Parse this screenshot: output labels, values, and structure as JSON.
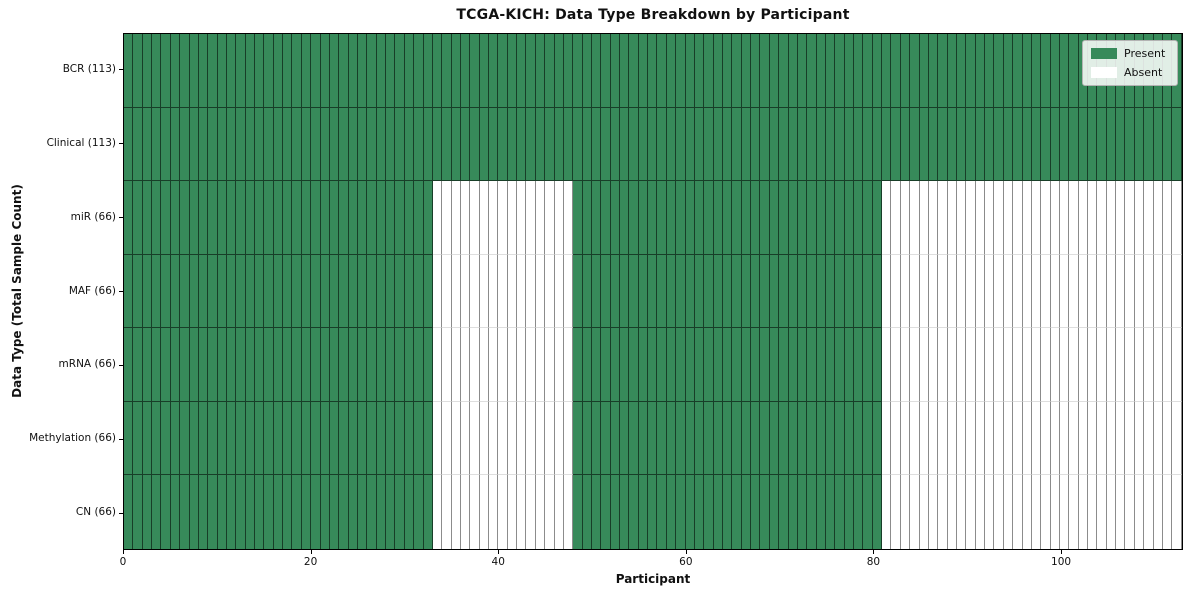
{
  "chart_data": {
    "type": "heatmap",
    "title": "TCGA-KICH: Data Type Breakdown by Participant",
    "xlabel": "Participant",
    "ylabel": "Data Type (Total Sample Count)",
    "x_range": [
      0,
      113
    ],
    "n_participants": 113,
    "x_ticks": [
      0,
      20,
      40,
      60,
      80,
      100
    ],
    "grid": true,
    "colors": {
      "present": "#378a5a",
      "absent": "#ffffff"
    },
    "legend": {
      "position": "upper right",
      "entries": [
        {
          "label": "Present",
          "color": "#378a5a"
        },
        {
          "label": "Absent",
          "color": "#ffffff"
        }
      ]
    },
    "rows": [
      {
        "label": "BCR (113)",
        "total_samples": 113,
        "present_ranges": [
          [
            0,
            113
          ]
        ],
        "absent_ranges": []
      },
      {
        "label": "Clinical (113)",
        "total_samples": 113,
        "present_ranges": [
          [
            0,
            113
          ]
        ],
        "absent_ranges": []
      },
      {
        "label": "miR (66)",
        "total_samples": 66,
        "present_ranges": [
          [
            0,
            33
          ],
          [
            48,
            81
          ]
        ],
        "absent_ranges": [
          [
            33,
            48
          ],
          [
            81,
            113
          ]
        ]
      },
      {
        "label": "MAF (66)",
        "total_samples": 66,
        "present_ranges": [
          [
            0,
            33
          ],
          [
            48,
            81
          ]
        ],
        "absent_ranges": [
          [
            33,
            48
          ],
          [
            81,
            113
          ]
        ]
      },
      {
        "label": "mRNA (66)",
        "total_samples": 66,
        "present_ranges": [
          [
            0,
            33
          ],
          [
            48,
            81
          ]
        ],
        "absent_ranges": [
          [
            33,
            48
          ],
          [
            81,
            113
          ]
        ]
      },
      {
        "label": "Methylation (66)",
        "total_samples": 66,
        "present_ranges": [
          [
            0,
            33
          ],
          [
            48,
            81
          ]
        ],
        "absent_ranges": [
          [
            33,
            48
          ],
          [
            81,
            113
          ]
        ]
      },
      {
        "label": "CN (66)",
        "total_samples": 66,
        "present_ranges": [
          [
            0,
            33
          ],
          [
            48,
            81
          ]
        ],
        "absent_ranges": [
          [
            33,
            48
          ],
          [
            81,
            113
          ]
        ]
      }
    ]
  }
}
